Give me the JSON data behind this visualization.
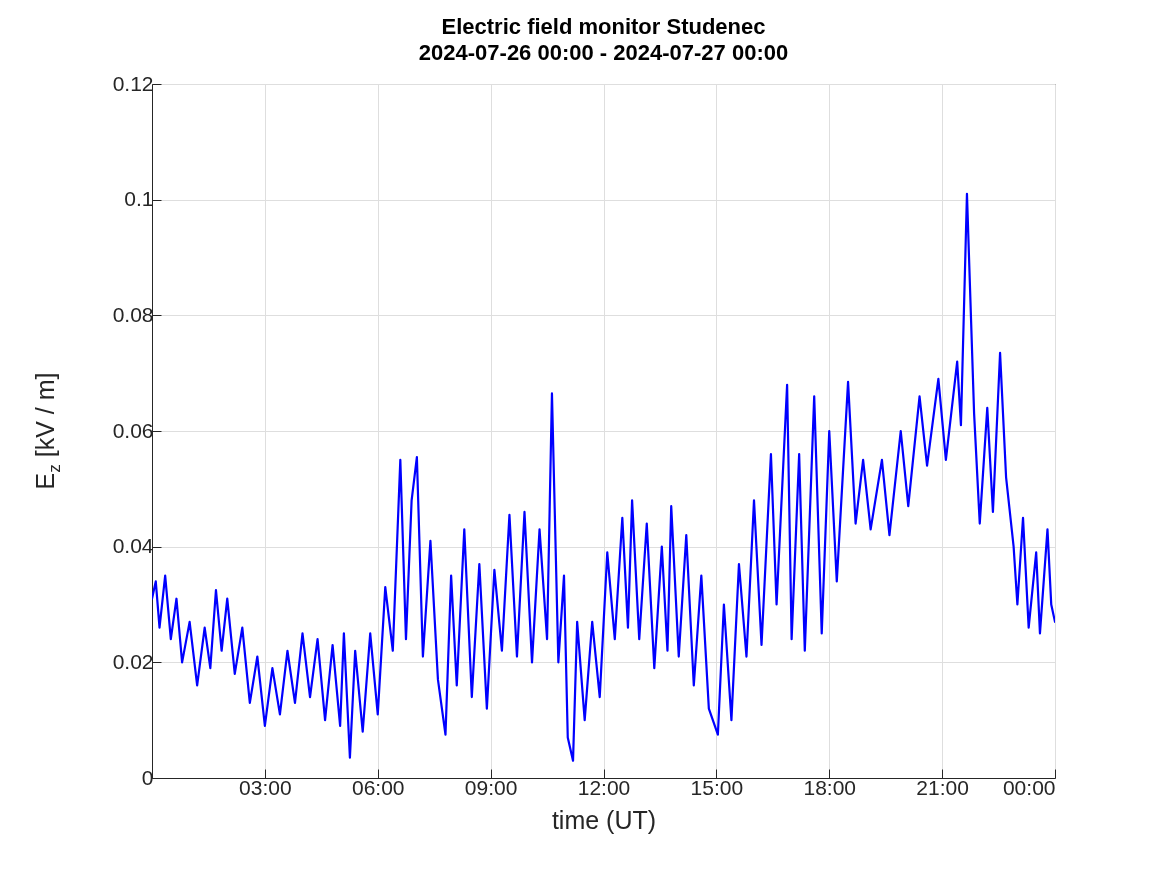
{
  "chart_data": {
    "type": "line",
    "title": "Electric field monitor Studenec",
    "subtitle": "2024-07-26 00:00 - 2024-07-27 00:00",
    "xlabel": "time (UT)",
    "ylabel": "E$_{z}$ [kV / m]",
    "color": "#0000ff",
    "line_style": "solid",
    "grid": true,
    "xlim": [
      0,
      24
    ],
    "ylim": [
      0,
      0.12
    ],
    "xticks": [
      {
        "value": 3,
        "label": "03:00"
      },
      {
        "value": 6,
        "label": "06:00"
      },
      {
        "value": 9,
        "label": "09:00"
      },
      {
        "value": 12,
        "label": "12:00"
      },
      {
        "value": 15,
        "label": "15:00"
      },
      {
        "value": 18,
        "label": "18:00"
      },
      {
        "value": 21,
        "label": "21:00"
      },
      {
        "value": 24,
        "label": "00:00"
      }
    ],
    "yticks": [
      0,
      0.02,
      0.04,
      0.06,
      0.08,
      0.1,
      0.12
    ],
    "x": [
      0,
      0.1,
      0.2,
      0.35,
      0.5,
      0.65,
      0.8,
      1.0,
      1.2,
      1.4,
      1.55,
      1.7,
      1.85,
      2.0,
      2.2,
      2.4,
      2.6,
      2.8,
      3.0,
      3.2,
      3.4,
      3.6,
      3.8,
      4.0,
      4.2,
      4.4,
      4.6,
      4.8,
      5.0,
      5.1,
      5.26,
      5.4,
      5.6,
      5.8,
      6.0,
      6.2,
      6.4,
      6.6,
      6.75,
      6.9,
      7.04,
      7.2,
      7.4,
      7.6,
      7.8,
      7.95,
      8.1,
      8.3,
      8.5,
      8.7,
      8.9,
      9.1,
      9.3,
      9.5,
      9.7,
      9.9,
      10.1,
      10.3,
      10.5,
      10.63,
      10.8,
      10.95,
      11.05,
      11.19,
      11.3,
      11.5,
      11.7,
      11.9,
      12.1,
      12.3,
      12.5,
      12.65,
      12.76,
      12.95,
      13.15,
      13.35,
      13.55,
      13.7,
      13.8,
      14.0,
      14.2,
      14.4,
      14.6,
      14.8,
      15.04,
      15.2,
      15.4,
      15.6,
      15.8,
      16.0,
      16.2,
      16.45,
      16.6,
      16.88,
      17.0,
      17.2,
      17.35,
      17.6,
      17.8,
      18.0,
      18.2,
      18.5,
      18.7,
      18.9,
      19.1,
      19.4,
      19.6,
      19.9,
      20.1,
      20.4,
      20.6,
      20.9,
      21.1,
      21.4,
      21.5,
      21.66,
      21.85,
      22.0,
      22.2,
      22.35,
      22.54,
      22.7,
      22.9,
      23.0,
      23.15,
      23.3,
      23.5,
      23.6,
      23.8,
      23.9,
      24.0
    ],
    "values": [
      0.031,
      0.034,
      0.026,
      0.035,
      0.024,
      0.031,
      0.02,
      0.027,
      0.016,
      0.026,
      0.019,
      0.0325,
      0.022,
      0.031,
      0.018,
      0.026,
      0.013,
      0.021,
      0.009,
      0.019,
      0.011,
      0.022,
      0.013,
      0.025,
      0.014,
      0.024,
      0.01,
      0.023,
      0.009,
      0.025,
      0.0035,
      0.022,
      0.008,
      0.025,
      0.011,
      0.033,
      0.022,
      0.055,
      0.024,
      0.048,
      0.0555,
      0.021,
      0.041,
      0.017,
      0.0075,
      0.035,
      0.016,
      0.043,
      0.014,
      0.037,
      0.012,
      0.036,
      0.022,
      0.0455,
      0.021,
      0.046,
      0.02,
      0.043,
      0.024,
      0.0665,
      0.02,
      0.035,
      0.007,
      0.003,
      0.027,
      0.01,
      0.027,
      0.014,
      0.039,
      0.024,
      0.045,
      0.026,
      0.048,
      0.024,
      0.044,
      0.019,
      0.04,
      0.022,
      0.047,
      0.021,
      0.042,
      0.016,
      0.035,
      0.012,
      0.0075,
      0.03,
      0.01,
      0.037,
      0.021,
      0.048,
      0.023,
      0.056,
      0.03,
      0.068,
      0.024,
      0.056,
      0.022,
      0.066,
      0.025,
      0.06,
      0.034,
      0.0685,
      0.044,
      0.055,
      0.043,
      0.055,
      0.042,
      0.06,
      0.047,
      0.066,
      0.054,
      0.069,
      0.055,
      0.072,
      0.061,
      0.101,
      0.063,
      0.044,
      0.064,
      0.046,
      0.0735,
      0.052,
      0.04,
      0.03,
      0.045,
      0.026,
      0.039,
      0.025,
      0.043,
      0.03,
      0.027
    ]
  }
}
